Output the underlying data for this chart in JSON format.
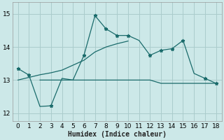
{
  "xlabel": "Humidex (Indice chaleur)",
  "bg_color": "#cce8e8",
  "grid_color": "#aacccc",
  "line_color": "#1a6b6b",
  "xlim": [
    -0.5,
    18.5
  ],
  "ylim": [
    11.75,
    15.35
  ],
  "yticks": [
    12,
    13,
    14,
    15
  ],
  "xticks": [
    0,
    1,
    2,
    3,
    4,
    5,
    6,
    7,
    8,
    9,
    10,
    11,
    12,
    13,
    14,
    15,
    16,
    17,
    18
  ],
  "main_x": [
    0,
    1,
    2,
    3,
    4,
    5,
    6,
    7,
    8,
    9,
    10,
    11,
    12,
    13,
    14,
    15,
    16,
    17,
    18
  ],
  "main_y": [
    13.35,
    13.15,
    12.2,
    12.22,
    13.05,
    13.0,
    13.75,
    14.95,
    14.55,
    14.35,
    14.35,
    14.2,
    13.75,
    13.9,
    13.95,
    14.2,
    13.2,
    13.05,
    12.9
  ],
  "markers_x": [
    0,
    1,
    3,
    6,
    7,
    8,
    9,
    10,
    12,
    13,
    14,
    15,
    17,
    18
  ],
  "markers_y": [
    13.35,
    13.15,
    12.22,
    13.75,
    14.95,
    14.55,
    14.35,
    14.35,
    13.75,
    13.9,
    13.95,
    14.2,
    13.05,
    12.9
  ],
  "rise_x": [
    0,
    1,
    2,
    3,
    4,
    5,
    6,
    7,
    8,
    9,
    10
  ],
  "rise_y": [
    13.0,
    13.08,
    13.16,
    13.22,
    13.3,
    13.45,
    13.6,
    13.85,
    14.0,
    14.1,
    14.18
  ],
  "flat_x": [
    2,
    3,
    4,
    5,
    6,
    7,
    8,
    9,
    10,
    11,
    12,
    13,
    14,
    15,
    16,
    17,
    18
  ],
  "flat_y": [
    13.0,
    13.0,
    13.0,
    13.0,
    13.0,
    13.0,
    13.0,
    13.0,
    13.0,
    13.0,
    13.0,
    12.9,
    12.9,
    12.9,
    12.9,
    12.9,
    12.9
  ]
}
